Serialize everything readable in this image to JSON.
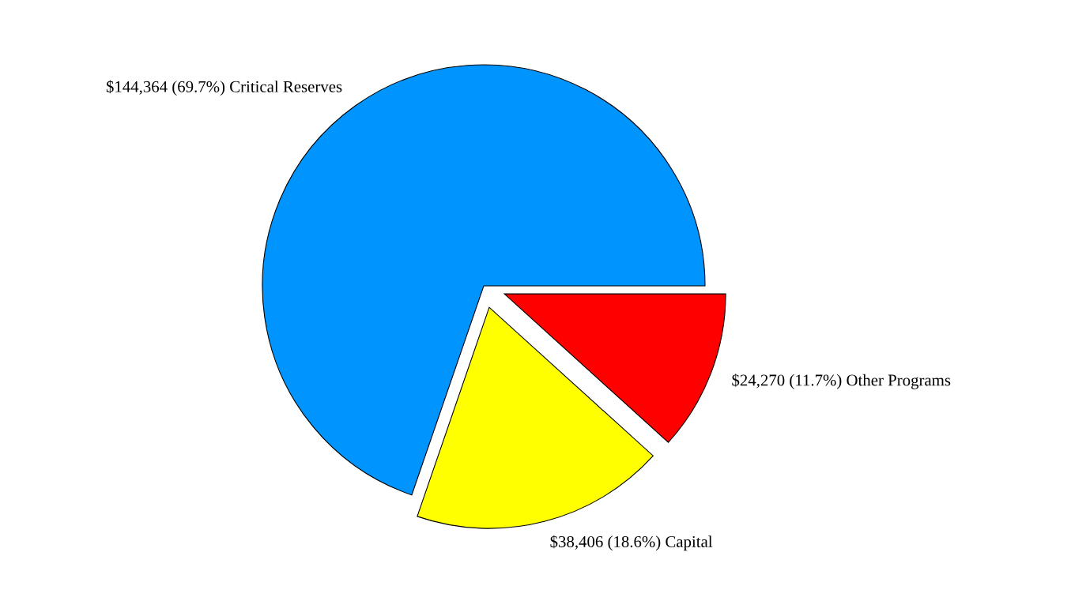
{
  "chart_data": {
    "type": "pie",
    "categories": [
      "Critical Reserves",
      "Capital",
      "Other Programs"
    ],
    "values": [
      144364,
      38406,
      24270
    ],
    "value_labels": [
      "$144,364 (69.7%)",
      "$38,406 (18.6%)",
      "$24,270 (11.7%)"
    ],
    "colors": [
      "#0094ff",
      "#ffff00",
      "#ff0000"
    ],
    "legend": false
  }
}
